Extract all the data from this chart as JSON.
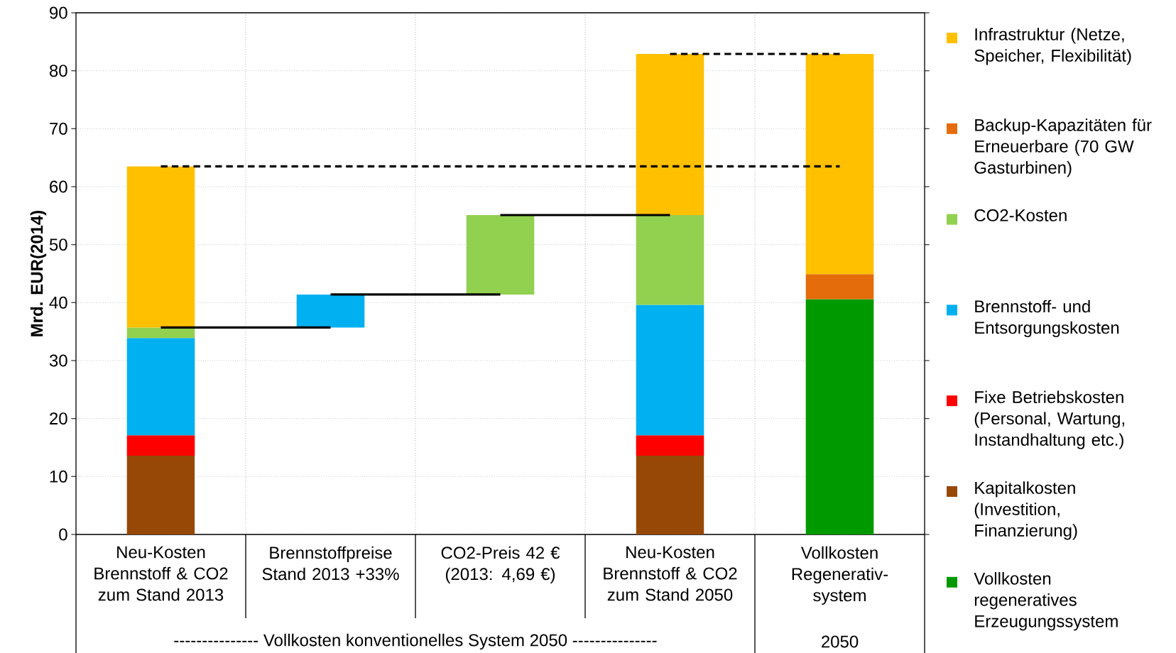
{
  "chart_data": {
    "type": "bar",
    "stacked": true,
    "ylabel": "Mrd. EUR(2014)",
    "categories": [
      "Neu-Kosten Brennstoff & CO2 zum Stand 2013",
      "Brennstoffpreise Stand 2013 +33%",
      "CO2-Preis 42 € (2013: 4,69 €)",
      "Neu-Kosten Brennstoff & CO2 zum Stand 2050",
      "Vollkosten Regenerativ-system"
    ],
    "series": [
      {
        "name": "Vollkosten regeneratives Erzeugungssystem",
        "color": "#009a00",
        "values": [
          null,
          null,
          null,
          null,
          40.6
        ]
      },
      {
        "name": "Kapitalkosten (Investition, Finanzierung)",
        "color": "#974807",
        "values": [
          13.6,
          null,
          null,
          13.6,
          null
        ]
      },
      {
        "name": "Fixe Betriebskosten (Personal, Wartung, Instandhaltung etc.)",
        "color": "#ff0000",
        "values": [
          3.5,
          null,
          null,
          3.5,
          null
        ]
      },
      {
        "name": "Brennstoff- und Entsorgungskosten",
        "color": "#00b0f0",
        "values": [
          16.8,
          5.7,
          null,
          22.5,
          null
        ],
        "base": [
          null,
          35.7,
          null,
          null,
          null
        ]
      },
      {
        "name": "CO2-Kosten",
        "color": "#92d050",
        "values": [
          1.8,
          null,
          13.7,
          15.5,
          null
        ],
        "base": [
          null,
          null,
          41.4,
          null,
          null
        ]
      },
      {
        "name": "Backup-Kapazitäten für Erneuerbare (70 GW Gasturbinen)",
        "color": "#e46c0a",
        "values": [
          null,
          null,
          null,
          null,
          4.3
        ]
      },
      {
        "name": "Infrastruktur (Netze, Speicher, Flexibilität)",
        "color": "#ffc000",
        "values": [
          27.8,
          null,
          null,
          27.8,
          38.0
        ]
      },
      {
        "type": "line",
        "color": "#000000",
        "line_style": "solid",
        "values": [
          35.7,
          35.7,
          null,
          null,
          null
        ]
      },
      {
        "type": "line",
        "color": "#000000",
        "line_style": "solid",
        "values": [
          null,
          41.4,
          41.4,
          null,
          null
        ]
      },
      {
        "type": "line",
        "color": "#000000",
        "line_style": "solid",
        "values": [
          null,
          null,
          55.1,
          55.1,
          null
        ]
      },
      {
        "type": "line",
        "color": "#000000",
        "line_style": "dashed",
        "values": [
          63.5,
          63.5,
          63.5,
          63.5,
          63.5
        ]
      },
      {
        "type": "line",
        "color": "#000000",
        "line_style": "dashed",
        "values": [
          null,
          null,
          null,
          82.9,
          82.9
        ]
      }
    ],
    "ylim": [
      0,
      90
    ],
    "yticks": [
      0,
      10,
      20,
      30,
      40,
      50,
      60,
      70,
      80,
      90
    ],
    "grid": true,
    "legend": "right",
    "annotations": [
      "---------------   Vollkosten konventionelles System 2050   ---------------",
      "2050"
    ]
  }
}
